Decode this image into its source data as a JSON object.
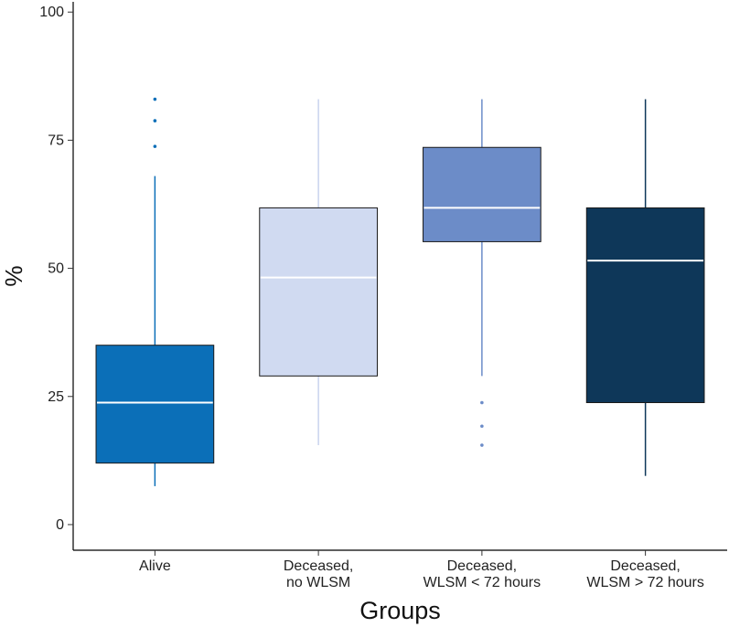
{
  "chart_data": {
    "type": "boxplot",
    "title": "",
    "xlabel": "Groups",
    "ylabel": "%",
    "ylim": [
      -5,
      102
    ],
    "yticks": [
      0,
      25,
      50,
      75,
      100
    ],
    "grid": false,
    "legend": "none",
    "groups": [
      {
        "label_lines": [
          "Alive"
        ],
        "color": "#0B6FB8",
        "median_color": "#ffffff",
        "whisker_color": "#0B6FB8",
        "whisker_low": 7.5,
        "q1": 12,
        "median": 23.8,
        "q3": 35,
        "whisker_high": 68,
        "outliers": [
          73.8,
          78.8,
          83
        ]
      },
      {
        "label_lines": [
          "Deceased,",
          "no WLSM"
        ],
        "color": "#D0DAF1",
        "median_color": "#ffffff",
        "whisker_color": "#C8D3EE",
        "whisker_low": 15.5,
        "q1": 29,
        "median": 48.2,
        "q3": 61.8,
        "whisker_high": 83,
        "outliers": []
      },
      {
        "label_lines": [
          "Deceased,",
          "WLSM < 72 hours"
        ],
        "color": "#6C8CC8",
        "median_color": "#ffffff",
        "whisker_color": "#6C8CC8",
        "whisker_low": 29,
        "q1": 55.2,
        "median": 61.8,
        "q3": 73.6,
        "whisker_high": 83,
        "outliers": [
          15.5,
          19.2,
          23.8
        ]
      },
      {
        "label_lines": [
          "Deceased,",
          "WLSM > 72 hours"
        ],
        "color": "#0E3759",
        "median_color": "#ffffff",
        "whisker_color": "#0E3759",
        "whisker_low": 9.5,
        "q1": 23.8,
        "median": 51.5,
        "q3": 61.8,
        "whisker_high": 83,
        "outliers": []
      }
    ]
  }
}
